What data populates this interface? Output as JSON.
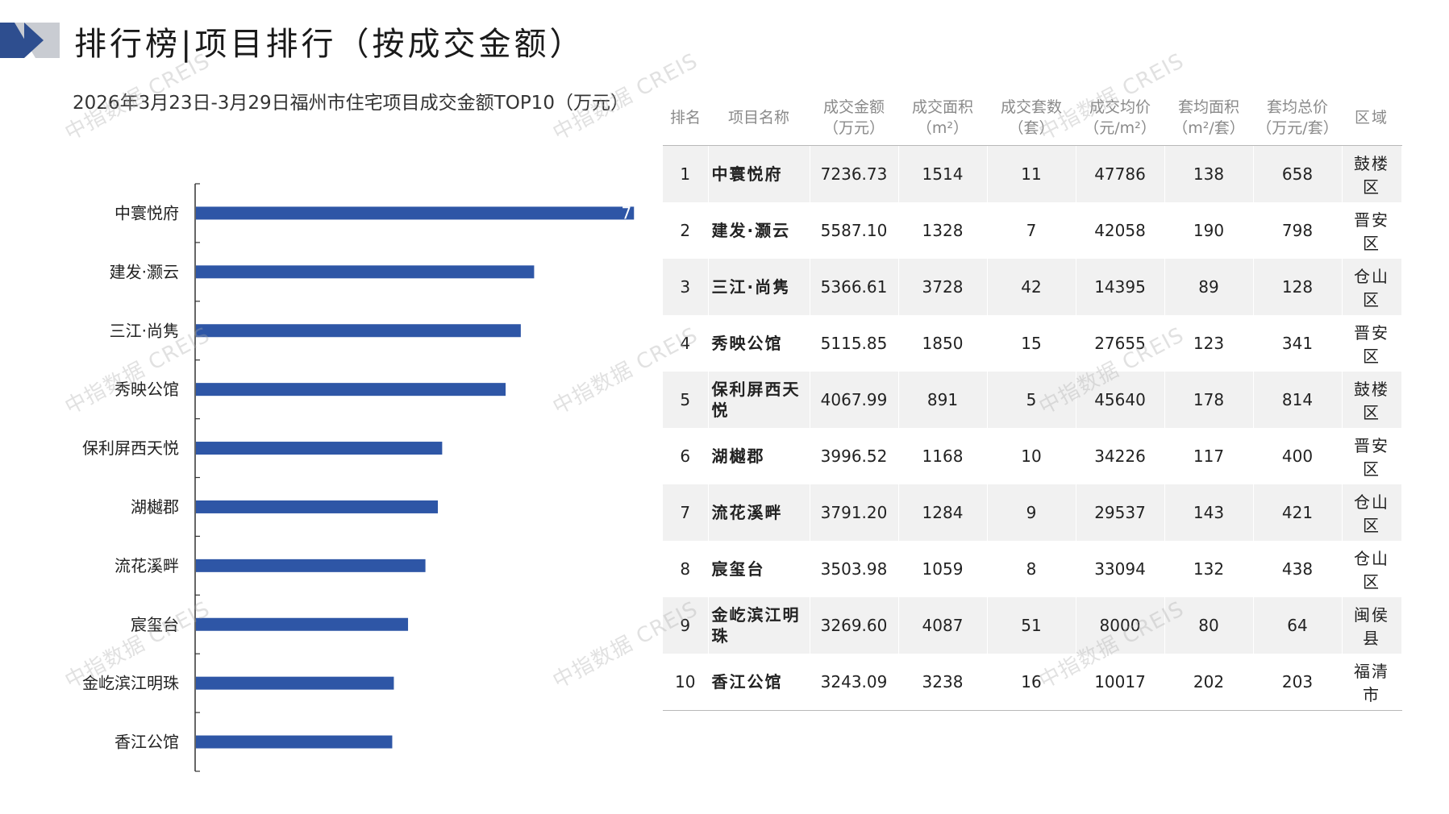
{
  "header": {
    "title": "排行榜|项目排行（按成交金额）"
  },
  "colors": {
    "bar": "#2e56a6",
    "axis": "#333333",
    "logo_dark": "#2e4e8f",
    "logo_light": "#c9ccd2"
  },
  "watermark": "中指数据 CREIS",
  "chart_data": {
    "type": "bar",
    "orientation": "horizontal",
    "title": "2026年3月23日-3月29日福州市住宅项目成交金额TOP10（万元）",
    "categories": [
      "中寰悦府",
      "建发·灏云",
      "三江·尚隽",
      "秀映公馆",
      "保利屏西天悦",
      "湖樾郡",
      "流花溪畔",
      "宸玺台",
      "金屹滨江明珠",
      "香江公馆"
    ],
    "values": [
      7236.73,
      5587.1,
      5366.61,
      5115.85,
      4067.99,
      3996.52,
      3791.2,
      3503.98,
      3269.6,
      3243.09
    ],
    "visible_data_label": "7",
    "xlim": [
      0,
      7300
    ],
    "xlabel": "",
    "ylabel": "",
    "grid": false
  },
  "table": {
    "headers": [
      "排名",
      "项目名称",
      "成交金额\n（万元）",
      "成交面积\n（m²）",
      "成交套数\n（套）",
      "成交均价\n（元/m²）",
      "套均面积\n（m²/套）",
      "套均总价\n（万元/套）",
      "区域"
    ],
    "rows": [
      [
        "1",
        "中寰悦府",
        "7236.73",
        "1514",
        "11",
        "47786",
        "138",
        "658",
        "鼓楼区"
      ],
      [
        "2",
        "建发·灏云",
        "5587.10",
        "1328",
        "7",
        "42058",
        "190",
        "798",
        "晋安区"
      ],
      [
        "3",
        "三江·尚隽",
        "5366.61",
        "3728",
        "42",
        "14395",
        "89",
        "128",
        "仓山区"
      ],
      [
        "4",
        "秀映公馆",
        "5115.85",
        "1850",
        "15",
        "27655",
        "123",
        "341",
        "晋安区"
      ],
      [
        "5",
        "保利屏西天悦",
        "4067.99",
        "891",
        "5",
        "45640",
        "178",
        "814",
        "鼓楼区"
      ],
      [
        "6",
        "湖樾郡",
        "3996.52",
        "1168",
        "10",
        "34226",
        "117",
        "400",
        "晋安区"
      ],
      [
        "7",
        "流花溪畔",
        "3791.20",
        "1284",
        "9",
        "29537",
        "143",
        "421",
        "仓山区"
      ],
      [
        "8",
        "宸玺台",
        "3503.98",
        "1059",
        "8",
        "33094",
        "132",
        "438",
        "仓山区"
      ],
      [
        "9",
        "金屹滨江明珠",
        "3269.60",
        "4087",
        "51",
        "8000",
        "80",
        "64",
        "闽侯县"
      ],
      [
        "10",
        "香江公馆",
        "3243.09",
        "3238",
        "16",
        "10017",
        "202",
        "203",
        "福清市"
      ]
    ]
  }
}
